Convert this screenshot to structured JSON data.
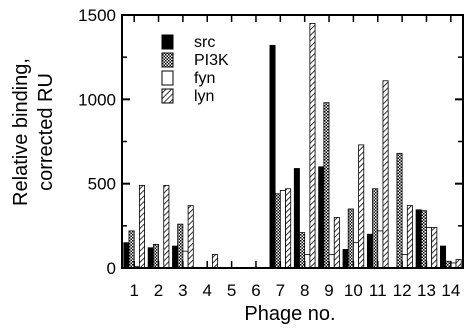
{
  "chart_data": {
    "type": "bar",
    "title": "",
    "xlabel": "Phage no.",
    "ylabel_lines": [
      "Relative binding,",
      "corrected RU"
    ],
    "ylim": [
      0,
      1500
    ],
    "yticks": [
      0,
      500,
      1000,
      1500
    ],
    "ytick_labels": [
      "0",
      "500",
      "1000",
      "1500"
    ],
    "categories": [
      "1",
      "2",
      "3",
      "4",
      "5",
      "6",
      "7",
      "8",
      "9",
      "10",
      "11",
      "12",
      "13",
      "14"
    ],
    "legend_position": "upper-left",
    "grid": false,
    "series": [
      {
        "name": "src",
        "pattern": "solid",
        "values": [
          150,
          120,
          130,
          0,
          0,
          0,
          1320,
          590,
          600,
          110,
          200,
          0,
          345,
          130
        ]
      },
      {
        "name": "PI3K",
        "pattern": "crosshatch",
        "values": [
          220,
          140,
          260,
          0,
          0,
          0,
          440,
          210,
          980,
          350,
          470,
          680,
          340,
          40
        ]
      },
      {
        "name": "fyn",
        "pattern": "open",
        "values": [
          10,
          0,
          100,
          0,
          0,
          0,
          460,
          80,
          80,
          150,
          220,
          80,
          240,
          30
        ]
      },
      {
        "name": "lyn",
        "pattern": "diagonal",
        "values": [
          490,
          490,
          370,
          80,
          0,
          0,
          470,
          1450,
          300,
          730,
          1110,
          370,
          240,
          50
        ]
      }
    ]
  }
}
